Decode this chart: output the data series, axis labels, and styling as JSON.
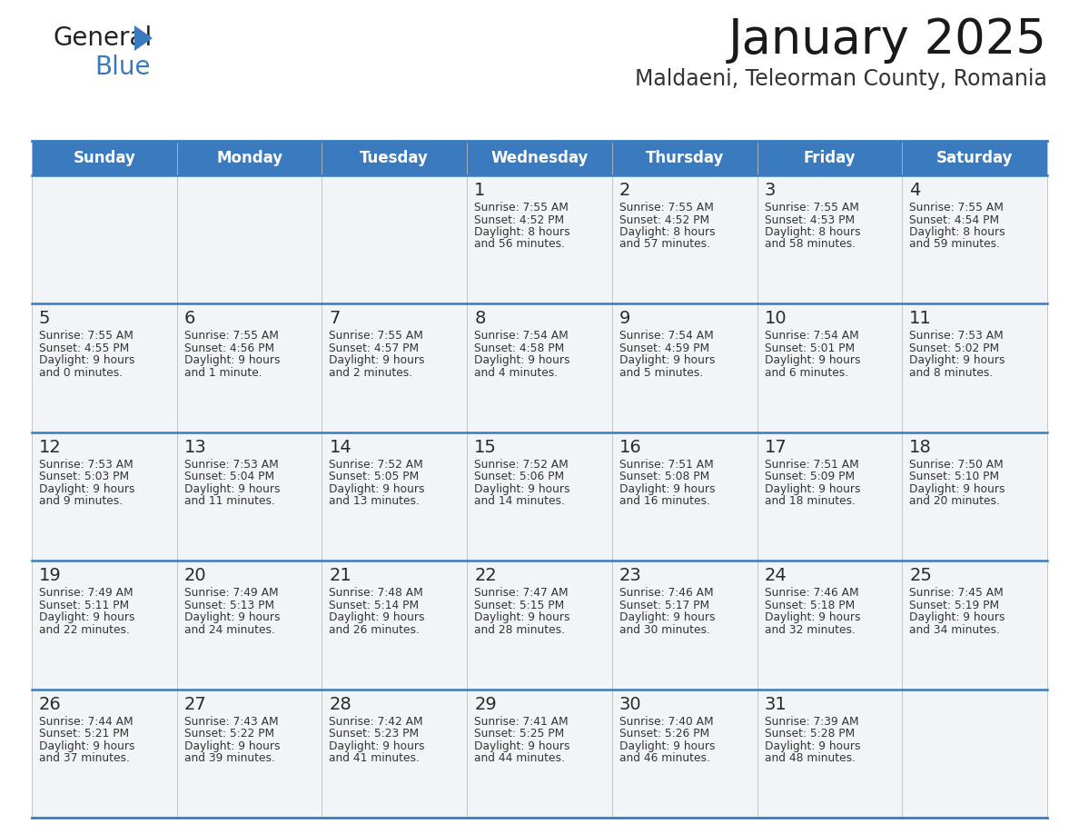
{
  "title": "January 2025",
  "subtitle": "Maldaeni, Teleorman County, Romania",
  "header_color": "#3a7bbf",
  "header_text_color": "#ffffff",
  "cell_bg_color": "#f2f5f8",
  "text_color": "#333333",
  "line_color": "#3a7bbf",
  "days_of_week": [
    "Sunday",
    "Monday",
    "Tuesday",
    "Wednesday",
    "Thursday",
    "Friday",
    "Saturday"
  ],
  "calendar_data": [
    [
      {
        "day": "",
        "sunrise": "",
        "sunset": "",
        "daylight": ""
      },
      {
        "day": "",
        "sunrise": "",
        "sunset": "",
        "daylight": ""
      },
      {
        "day": "",
        "sunrise": "",
        "sunset": "",
        "daylight": ""
      },
      {
        "day": "1",
        "sunrise": "7:55 AM",
        "sunset": "4:52 PM",
        "daylight": "8 hours and 56 minutes."
      },
      {
        "day": "2",
        "sunrise": "7:55 AM",
        "sunset": "4:52 PM",
        "daylight": "8 hours and 57 minutes."
      },
      {
        "day": "3",
        "sunrise": "7:55 AM",
        "sunset": "4:53 PM",
        "daylight": "8 hours and 58 minutes."
      },
      {
        "day": "4",
        "sunrise": "7:55 AM",
        "sunset": "4:54 PM",
        "daylight": "8 hours and 59 minutes."
      }
    ],
    [
      {
        "day": "5",
        "sunrise": "7:55 AM",
        "sunset": "4:55 PM",
        "daylight": "9 hours and 0 minutes."
      },
      {
        "day": "6",
        "sunrise": "7:55 AM",
        "sunset": "4:56 PM",
        "daylight": "9 hours and 1 minute."
      },
      {
        "day": "7",
        "sunrise": "7:55 AM",
        "sunset": "4:57 PM",
        "daylight": "9 hours and 2 minutes."
      },
      {
        "day": "8",
        "sunrise": "7:54 AM",
        "sunset": "4:58 PM",
        "daylight": "9 hours and 4 minutes."
      },
      {
        "day": "9",
        "sunrise": "7:54 AM",
        "sunset": "4:59 PM",
        "daylight": "9 hours and 5 minutes."
      },
      {
        "day": "10",
        "sunrise": "7:54 AM",
        "sunset": "5:01 PM",
        "daylight": "9 hours and 6 minutes."
      },
      {
        "day": "11",
        "sunrise": "7:53 AM",
        "sunset": "5:02 PM",
        "daylight": "9 hours and 8 minutes."
      }
    ],
    [
      {
        "day": "12",
        "sunrise": "7:53 AM",
        "sunset": "5:03 PM",
        "daylight": "9 hours and 9 minutes."
      },
      {
        "day": "13",
        "sunrise": "7:53 AM",
        "sunset": "5:04 PM",
        "daylight": "9 hours and 11 minutes."
      },
      {
        "day": "14",
        "sunrise": "7:52 AM",
        "sunset": "5:05 PM",
        "daylight": "9 hours and 13 minutes."
      },
      {
        "day": "15",
        "sunrise": "7:52 AM",
        "sunset": "5:06 PM",
        "daylight": "9 hours and 14 minutes."
      },
      {
        "day": "16",
        "sunrise": "7:51 AM",
        "sunset": "5:08 PM",
        "daylight": "9 hours and 16 minutes."
      },
      {
        "day": "17",
        "sunrise": "7:51 AM",
        "sunset": "5:09 PM",
        "daylight": "9 hours and 18 minutes."
      },
      {
        "day": "18",
        "sunrise": "7:50 AM",
        "sunset": "5:10 PM",
        "daylight": "9 hours and 20 minutes."
      }
    ],
    [
      {
        "day": "19",
        "sunrise": "7:49 AM",
        "sunset": "5:11 PM",
        "daylight": "9 hours and 22 minutes."
      },
      {
        "day": "20",
        "sunrise": "7:49 AM",
        "sunset": "5:13 PM",
        "daylight": "9 hours and 24 minutes."
      },
      {
        "day": "21",
        "sunrise": "7:48 AM",
        "sunset": "5:14 PM",
        "daylight": "9 hours and 26 minutes."
      },
      {
        "day": "22",
        "sunrise": "7:47 AM",
        "sunset": "5:15 PM",
        "daylight": "9 hours and 28 minutes."
      },
      {
        "day": "23",
        "sunrise": "7:46 AM",
        "sunset": "5:17 PM",
        "daylight": "9 hours and 30 minutes."
      },
      {
        "day": "24",
        "sunrise": "7:46 AM",
        "sunset": "5:18 PM",
        "daylight": "9 hours and 32 minutes."
      },
      {
        "day": "25",
        "sunrise": "7:45 AM",
        "sunset": "5:19 PM",
        "daylight": "9 hours and 34 minutes."
      }
    ],
    [
      {
        "day": "26",
        "sunrise": "7:44 AM",
        "sunset": "5:21 PM",
        "daylight": "9 hours and 37 minutes."
      },
      {
        "day": "27",
        "sunrise": "7:43 AM",
        "sunset": "5:22 PM",
        "daylight": "9 hours and 39 minutes."
      },
      {
        "day": "28",
        "sunrise": "7:42 AM",
        "sunset": "5:23 PM",
        "daylight": "9 hours and 41 minutes."
      },
      {
        "day": "29",
        "sunrise": "7:41 AM",
        "sunset": "5:25 PM",
        "daylight": "9 hours and 44 minutes."
      },
      {
        "day": "30",
        "sunrise": "7:40 AM",
        "sunset": "5:26 PM",
        "daylight": "9 hours and 46 minutes."
      },
      {
        "day": "31",
        "sunrise": "7:39 AM",
        "sunset": "5:28 PM",
        "daylight": "9 hours and 48 minutes."
      },
      {
        "day": "",
        "sunrise": "",
        "sunset": "",
        "daylight": ""
      }
    ]
  ],
  "logo_general_color": "#222222",
  "logo_blue_color": "#3a7bbf",
  "logo_triangle_color": "#3a7bbf"
}
